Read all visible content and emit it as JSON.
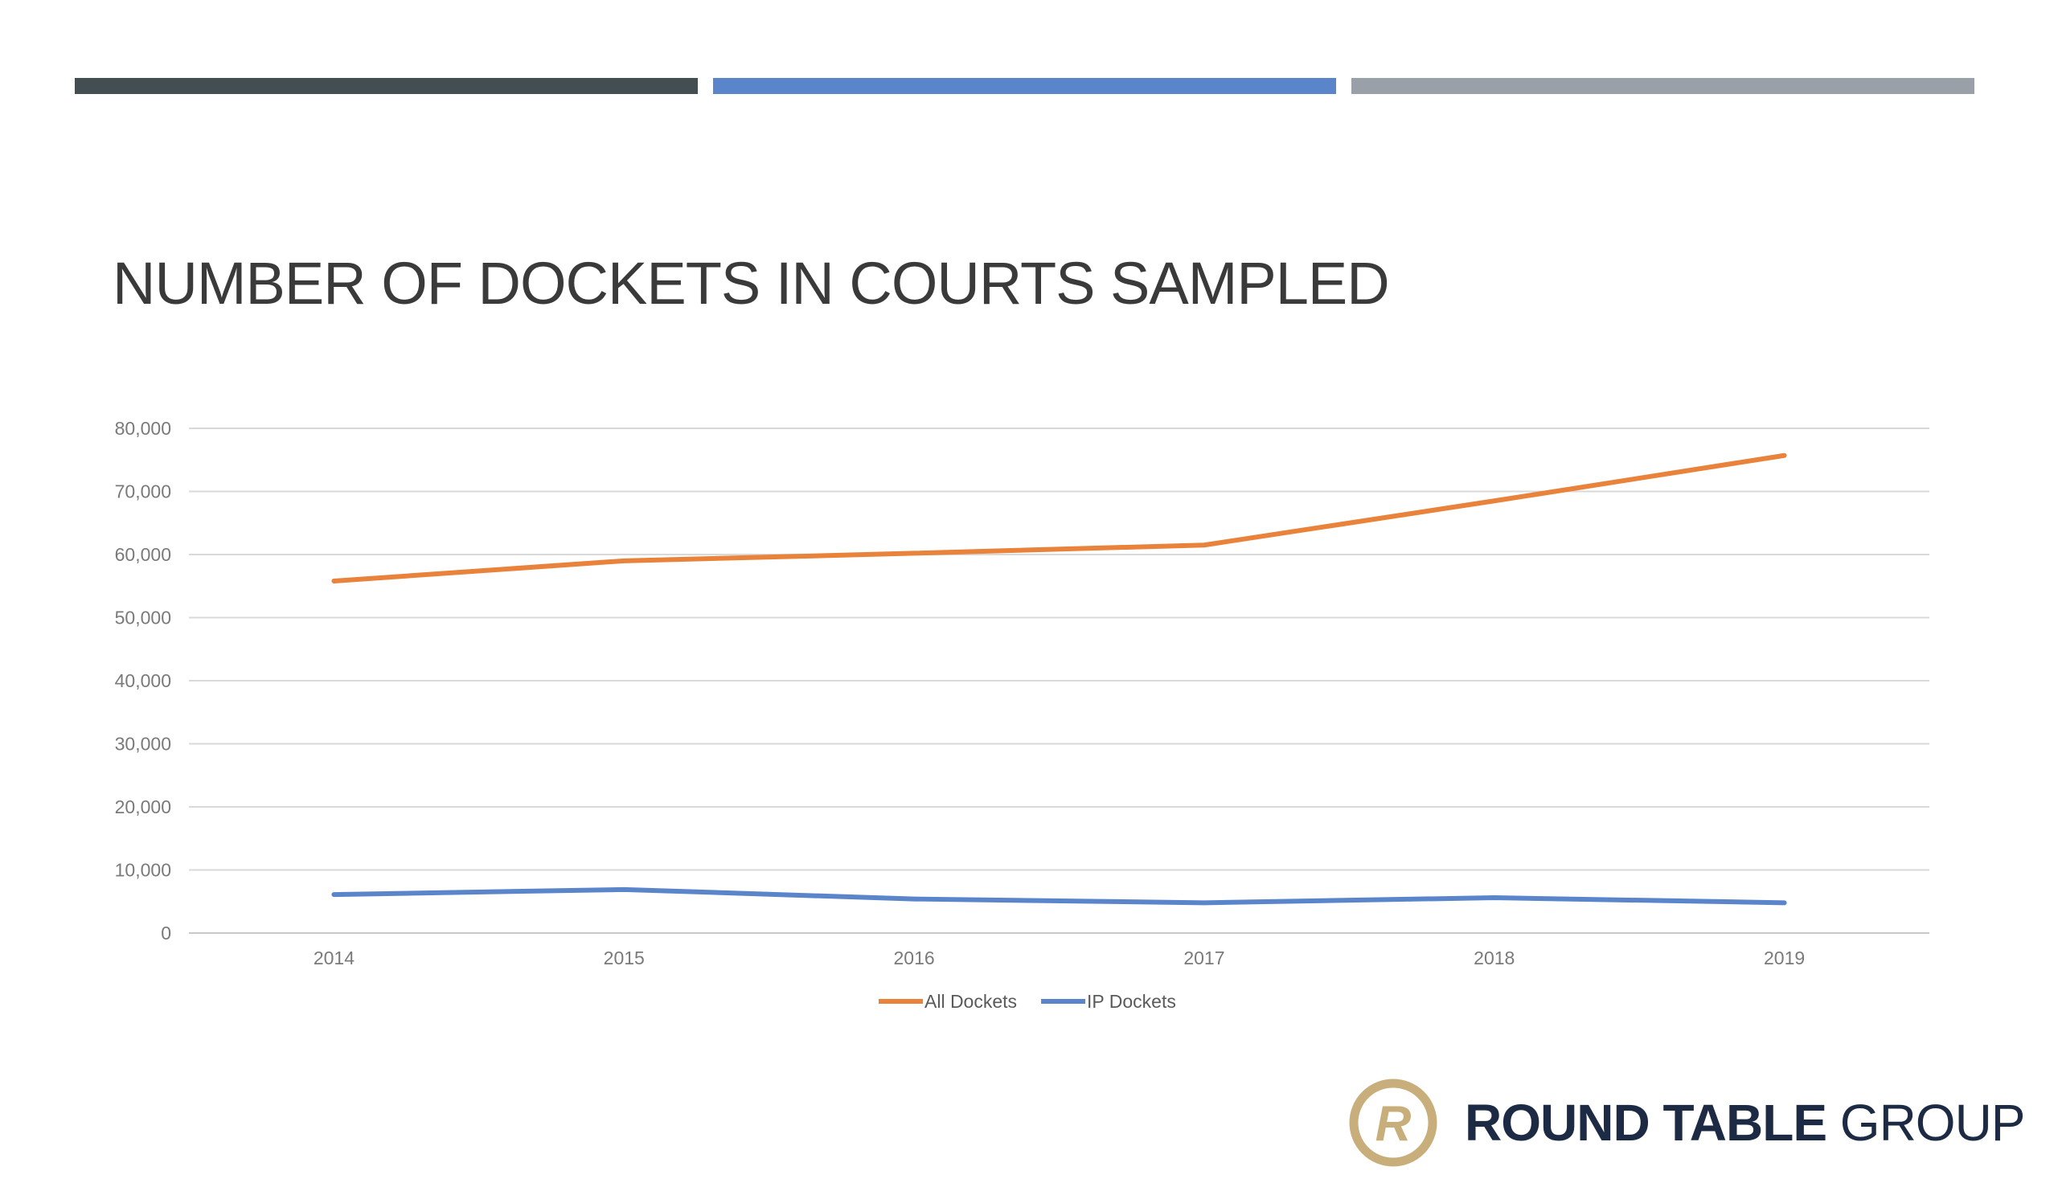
{
  "slide": {
    "title": "NUMBER OF DOCKETS IN COURTS SAMPLED",
    "accent_colors": [
      "#434e53",
      "#5b85cb",
      "#9aa0a8"
    ]
  },
  "logo": {
    "name_bold": "ROUND TABLE",
    "name_light": "GROUP",
    "monogram": "R",
    "ring_color": "#c8ae7a",
    "text_color": "#1c2a44"
  },
  "chart_data": {
    "type": "line",
    "title": "",
    "xlabel": "",
    "ylabel": "",
    "categories": [
      "2014",
      "2015",
      "2016",
      "2017",
      "2018",
      "2019"
    ],
    "ylim": [
      0,
      80000
    ],
    "yticks": [
      0,
      10000,
      20000,
      30000,
      40000,
      50000,
      60000,
      70000,
      80000
    ],
    "ytick_labels": [
      "0",
      "10,000",
      "20,000",
      "30,000",
      "40,000",
      "50,000",
      "60,000",
      "70,000",
      "80,000"
    ],
    "grid": true,
    "legend_position": "bottom-center",
    "series": [
      {
        "name": "All Dockets",
        "color": "#e9823a",
        "values": [
          55800,
          59000,
          60200,
          61500,
          68500,
          75700
        ]
      },
      {
        "name": "IP Dockets",
        "color": "#5b85cb",
        "values": [
          6100,
          6900,
          5400,
          4800,
          5600,
          4800
        ]
      }
    ]
  }
}
